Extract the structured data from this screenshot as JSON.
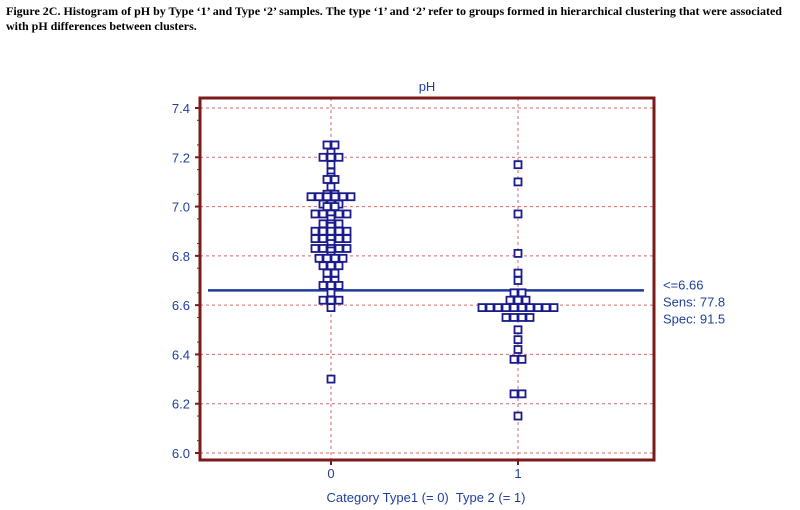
{
  "caption": "Figure 2C.  Histogram of pH by Type ‘1’ and Type ‘2’ samples.  The type ‘1’ and ‘2’ refer to groups formed in hierarchical clustering that were associated with pH differences between clusters.",
  "colors": {
    "frame": "#7b1a1a",
    "grid": "#d46a6a",
    "marker": "#1a1a8c",
    "cutoff_line": "#1f3a9e",
    "text": "#1f3f9e"
  },
  "chart_data": {
    "type": "scatter",
    "title": "pH",
    "xlabel": "Category Type1 (= 0)  Type 2 (= 1)",
    "ylabel": "",
    "ylim": [
      6.0,
      7.4
    ],
    "yticks": [
      "6.0",
      "6.2",
      "6.4",
      "6.6",
      "6.8",
      "7.0",
      "7.2",
      "7.4"
    ],
    "categories": [
      "0",
      "1"
    ],
    "grid": true,
    "series": [
      {
        "category": "0",
        "values": [
          7.25,
          7.25,
          7.22,
          7.2,
          7.2,
          7.2,
          7.17,
          7.14,
          7.12,
          7.11,
          7.11,
          7.08,
          7.05,
          7.05,
          7.04,
          7.04,
          7.04,
          7.04,
          7.04,
          7.04,
          7.01,
          7.01,
          7.01,
          7.0,
          7.0,
          6.97,
          6.97,
          6.97,
          6.97,
          6.97,
          6.95,
          6.93,
          6.93,
          6.93,
          6.92,
          6.9,
          6.9,
          6.9,
          6.9,
          6.9,
          6.87,
          6.87,
          6.87,
          6.87,
          6.87,
          6.85,
          6.83,
          6.83,
          6.83,
          6.83,
          6.83,
          6.82,
          6.8,
          6.79,
          6.79,
          6.79,
          6.79,
          6.76,
          6.76,
          6.76,
          6.73,
          6.73,
          6.7,
          6.7,
          6.68,
          6.68,
          6.68,
          6.65,
          6.62,
          6.62,
          6.62,
          6.59,
          6.3
        ]
      },
      {
        "category": "1",
        "values": [
          7.17,
          7.1,
          6.97,
          6.81,
          6.73,
          6.7,
          6.65,
          6.65,
          6.62,
          6.62,
          6.62,
          6.59,
          6.59,
          6.59,
          6.59,
          6.59,
          6.59,
          6.59,
          6.59,
          6.59,
          6.59,
          6.55,
          6.55,
          6.55,
          6.55,
          6.5,
          6.46,
          6.42,
          6.38,
          6.38,
          6.24,
          6.24,
          6.15
        ]
      }
    ],
    "cutoff": {
      "value": 6.66,
      "labels": [
        "<=6.66",
        "Sens: 77.8",
        "Spec: 91.5"
      ]
    }
  }
}
